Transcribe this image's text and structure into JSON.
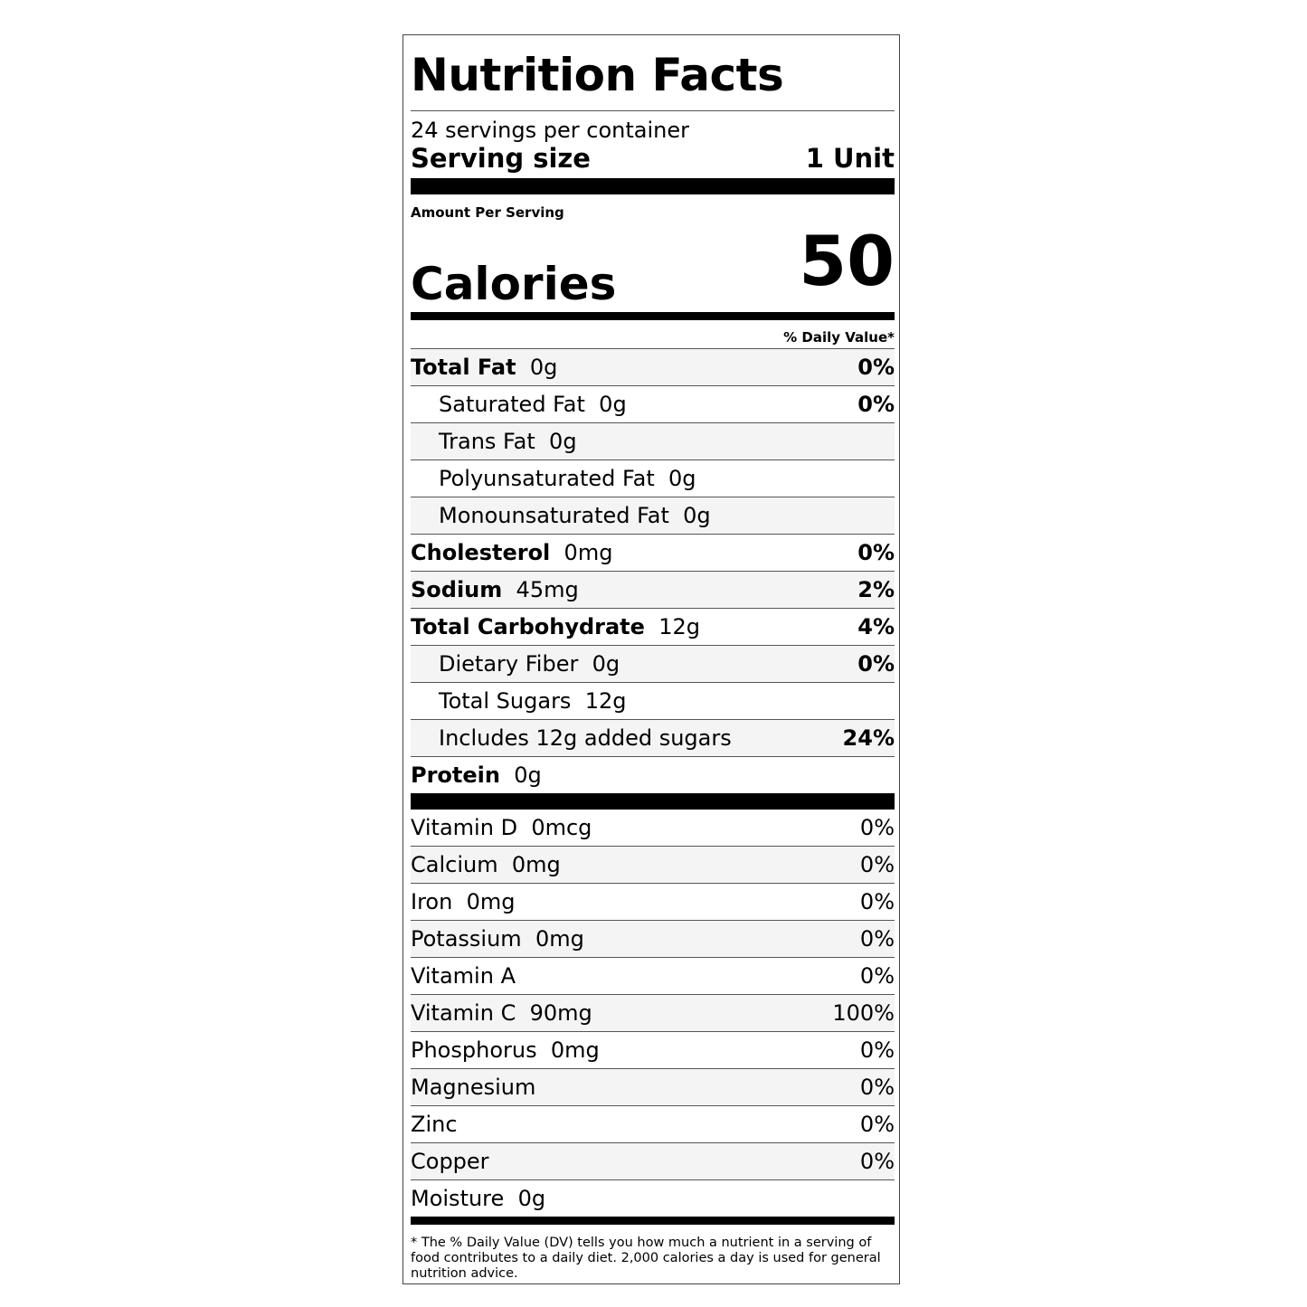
{
  "title": "Nutrition Facts",
  "servings_per_container": "24 servings per container",
  "serving_size_label": "Serving size",
  "serving_size_value": "1 Unit",
  "amount_per_serving": "Amount Per Serving",
  "calories_label": "Calories",
  "calories_value": "50",
  "daily_value_header": "% Daily Value*",
  "nutrients": [
    {
      "name": "Total Fat",
      "amount": "0g",
      "dv": "0%",
      "bold": true,
      "sub": false
    },
    {
      "name": "Saturated Fat",
      "amount": "0g",
      "dv": "0%",
      "bold": false,
      "sub": true
    },
    {
      "name": "Trans Fat",
      "amount": "0g",
      "dv": "",
      "bold": false,
      "sub": true
    },
    {
      "name": "Polyunsaturated Fat",
      "amount": "0g",
      "dv": "",
      "bold": false,
      "sub": true
    },
    {
      "name": "Monounsaturated Fat",
      "amount": "0g",
      "dv": "",
      "bold": false,
      "sub": true
    },
    {
      "name": "Cholesterol",
      "amount": "0mg",
      "dv": "0%",
      "bold": true,
      "sub": false
    },
    {
      "name": "Sodium",
      "amount": "45mg",
      "dv": "2%",
      "bold": true,
      "sub": false
    },
    {
      "name": "Total Carbohydrate",
      "amount": "12g",
      "dv": "4%",
      "bold": true,
      "sub": false
    },
    {
      "name": "Dietary Fiber",
      "amount": "0g",
      "dv": "0%",
      "bold": false,
      "sub": true
    },
    {
      "name": "Total Sugars",
      "amount": "12g",
      "dv": "",
      "bold": false,
      "sub": true
    },
    {
      "name": "Includes 12g added sugars",
      "amount": "",
      "dv": "24%",
      "bold": false,
      "sub": true
    },
    {
      "name": "Protein",
      "amount": "0g",
      "dv": "",
      "bold": true,
      "sub": false
    }
  ],
  "micronutrients": [
    {
      "name": "Vitamin D",
      "amount": "0mcg",
      "dv": "0%"
    },
    {
      "name": "Calcium",
      "amount": "0mg",
      "dv": "0%"
    },
    {
      "name": "Iron",
      "amount": "0mg",
      "dv": "0%"
    },
    {
      "name": "Potassium",
      "amount": "0mg",
      "dv": "0%"
    },
    {
      "name": "Vitamin A",
      "amount": "",
      "dv": "0%"
    },
    {
      "name": "Vitamin C",
      "amount": "90mg",
      "dv": "100%"
    },
    {
      "name": "Phosphorus",
      "amount": "0mg",
      "dv": "0%"
    },
    {
      "name": "Magnesium",
      "amount": "",
      "dv": "0%"
    },
    {
      "name": "Zinc",
      "amount": "",
      "dv": "0%"
    },
    {
      "name": "Copper",
      "amount": "",
      "dv": "0%"
    },
    {
      "name": "Moisture",
      "amount": "0g",
      "dv": ""
    }
  ],
  "footnote": "* The % Daily Value (DV) tells you how much a nutrient in a serving of food contributes to a daily diet. 2,000 calories a day is used for general nutrition advice."
}
